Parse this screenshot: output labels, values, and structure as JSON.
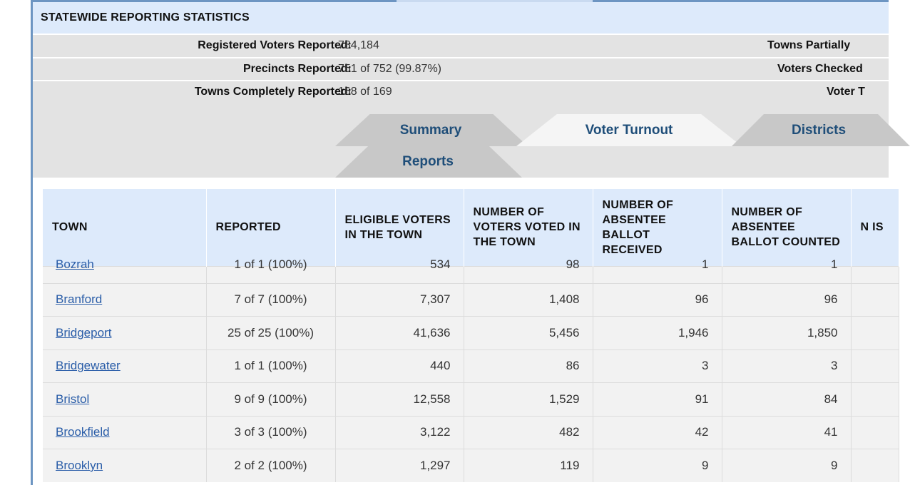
{
  "stats": {
    "title": "STATEWIDE REPORTING STATISTICS",
    "rows": [
      {
        "label": "Registered Voters Reported:",
        "value": "784,184",
        "right_label": "Towns Partially"
      },
      {
        "label": "Precincts Reported:",
        "value": "751 of 752 (99.87%)",
        "right_label": "Voters Checked"
      },
      {
        "label": "Towns Completely Reported:",
        "value": "168 of 169",
        "right_label": "Voter T"
      }
    ]
  },
  "tabs": {
    "summary": "Summary",
    "voter_turnout": "Voter Turnout",
    "districts": "Districts",
    "reports": "Reports",
    "active": "Voter Turnout"
  },
  "table": {
    "headers": [
      "TOWN",
      "REPORTED",
      "ELIGIBLE VOTERS IN THE TOWN",
      "NUMBER OF VOTERS VOTED IN THE TOWN",
      "NUMBER OF ABSENTEE BALLOT RECEIVED",
      "NUMBER OF ABSENTEE BALLOT COUNTED",
      "N IS"
    ],
    "partial_row": [
      "Bozrah",
      "1 of 1 (100%)",
      "534",
      "98",
      "1",
      "1"
    ],
    "rows": [
      [
        "Branford",
        "7 of 7 (100%)",
        "7,307",
        "1,408",
        "96",
        "96"
      ],
      [
        "Bridgeport",
        "25 of 25 (100%)",
        "41,636",
        "5,456",
        "1,946",
        "1,850"
      ],
      [
        "Bridgewater",
        "1 of 1 (100%)",
        "440",
        "86",
        "3",
        "3"
      ],
      [
        "Bristol",
        "9 of 9 (100%)",
        "12,558",
        "1,529",
        "91",
        "84"
      ],
      [
        "Brookfield",
        "3 of 3 (100%)",
        "3,122",
        "482",
        "42",
        "41"
      ],
      [
        "Brooklyn",
        "2 of 2 (100%)",
        "1,297",
        "119",
        "9",
        "9"
      ]
    ]
  }
}
